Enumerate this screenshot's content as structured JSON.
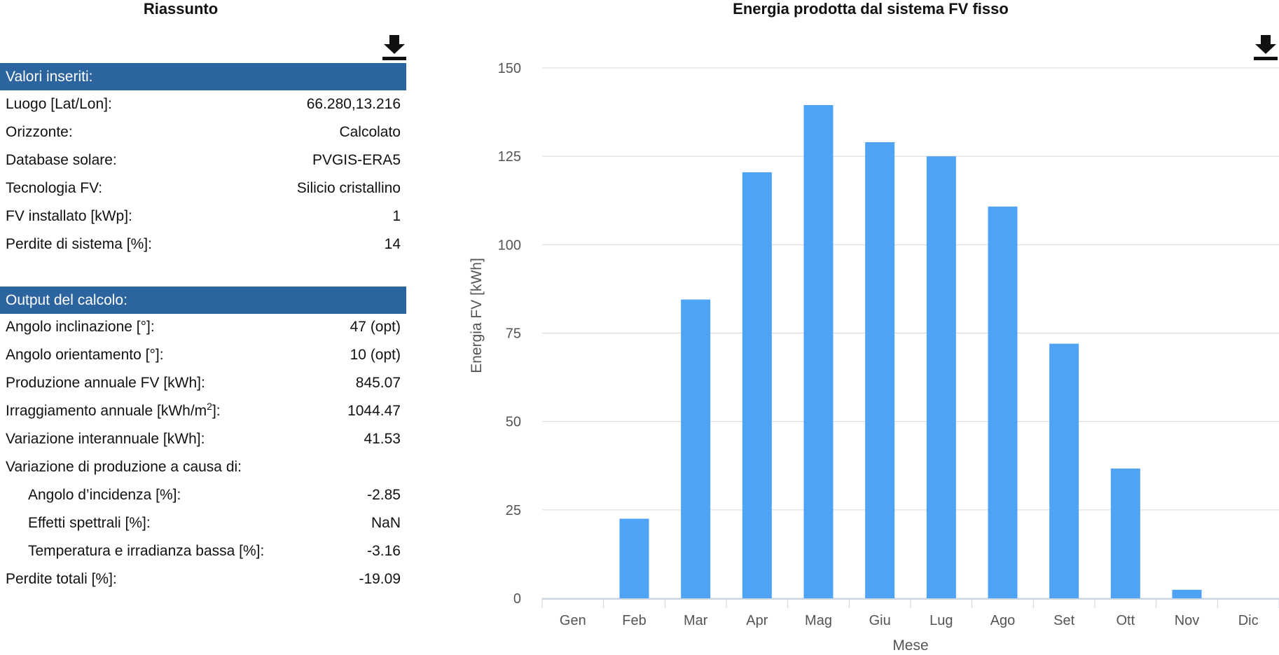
{
  "summary": {
    "title": "Riassunto",
    "download_icon": "download-icon",
    "inputs_header": "Valori inseriti:",
    "inputs": [
      {
        "label": "Luogo [Lat/Lon]:",
        "value": "66.280,13.216"
      },
      {
        "label": "Orizzonte:",
        "value": "Calcolato"
      },
      {
        "label": "Database solare:",
        "value": "PVGIS-ERA5"
      },
      {
        "label": "Tecnologia FV:",
        "value": "Silicio cristallino"
      },
      {
        "label": "FV installato [kWp]:",
        "value": "1"
      },
      {
        "label": "Perdite di sistema [%]:",
        "value": "14"
      }
    ],
    "outputs_header": "Output del calcolo:",
    "outputs": [
      {
        "label": "Angolo inclinazione [°]:",
        "value": "47 (opt)"
      },
      {
        "label": "Angolo orientamento [°]:",
        "value": "10 (opt)"
      },
      {
        "label": "Produzione annuale FV [kWh]:",
        "value": "845.07"
      },
      {
        "label_prefix": "Irraggiamento annuale [kWh/m",
        "label_sup": "2",
        "label_suffix": "]:",
        "value": "1044.47"
      },
      {
        "label": "Variazione interannuale [kWh]:",
        "value": "41.53"
      },
      {
        "label": "Variazione di produzione a causa di:",
        "value": ""
      },
      {
        "label": "Angolo d’incidenza [%]:",
        "value": "-2.85"
      },
      {
        "label": "Effetti spettrali [%]:",
        "value": "NaN"
      },
      {
        "label": "Temperatura e irradianza bassa [%]:",
        "value": "-3.16"
      },
      {
        "label": "Perdite totali [%]:",
        "value": "-19.09"
      }
    ]
  },
  "chart": {
    "download_icon": "download-icon",
    "bar_color": "#4fa3f5"
  },
  "chart_data": {
    "type": "bar",
    "title": "Energia prodotta dal sistema FV fisso",
    "categories": [
      "Gen",
      "Feb",
      "Mar",
      "Apr",
      "Mag",
      "Giu",
      "Lug",
      "Ago",
      "Set",
      "Ott",
      "Nov",
      "Dic"
    ],
    "values": [
      0,
      22.5,
      84.5,
      120.5,
      139.5,
      129,
      125,
      110.8,
      72,
      36.7,
      2.4,
      0
    ],
    "xlabel": "Mese",
    "ylabel": "Energia FV [kWh]",
    "ylim": [
      0,
      150
    ],
    "yticks": [
      0,
      25,
      50,
      75,
      100,
      125,
      150
    ],
    "grid": true
  }
}
